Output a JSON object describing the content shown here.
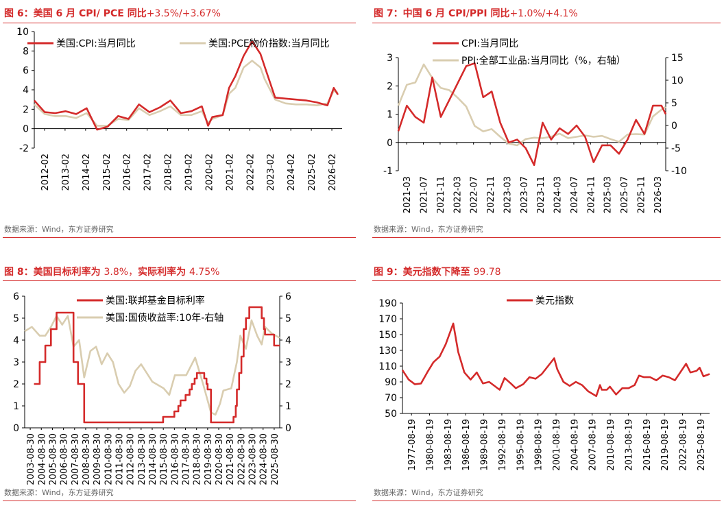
{
  "colors": {
    "red": "#d42a2a",
    "beige": "#d9cdb0",
    "axis": "#000000"
  },
  "charts": [
    {
      "title_prefix": "图 6：",
      "title_main": "美国 6 月 CPI/ PCE 同比",
      "title_suffix": "+3.5%/+3.67%",
      "source": "数据来源：Wind，东方证券研究",
      "chart_data": {
        "type": "line",
        "x_tick_labels": [
          "2012-02",
          "2013-02",
          "2014-02",
          "2015-02",
          "2016-02",
          "2017-02",
          "2018-02",
          "2019-02",
          "2020-02",
          "2021-02",
          "2022-02",
          "2023-02",
          "2024-02",
          "2025-02",
          "2026-02"
        ],
        "x_range": [
          2012.0,
          2026.7
        ],
        "ylim": [
          -2,
          10
        ],
        "yticks": [
          -2,
          0,
          2,
          4,
          6,
          8,
          10
        ],
        "legend": "top",
        "series": [
          {
            "name": "美国:CPI:当月同比",
            "color": "red",
            "x": [
              2012.0,
              2012.5,
              2013.0,
              2013.5,
              2014.0,
              2014.5,
              2015.0,
              2015.5,
              2016.0,
              2016.5,
              2017.0,
              2017.5,
              2018.0,
              2018.5,
              2019.0,
              2019.5,
              2020.0,
              2020.3,
              2020.5,
              2021.0,
              2021.3,
              2021.6,
              2022.0,
              2022.4,
              2022.8,
              2023.0,
              2023.5,
              2024.0,
              2024.5,
              2025.0,
              2025.5,
              2026.0,
              2026.3,
              2026.5
            ],
            "y": [
              2.9,
              1.7,
              1.6,
              1.8,
              1.5,
              2.1,
              -0.1,
              0.2,
              1.3,
              1.0,
              2.5,
              1.7,
              2.2,
              2.9,
              1.6,
              1.8,
              2.3,
              0.3,
              1.2,
              1.4,
              4.2,
              5.4,
              7.5,
              9.0,
              7.7,
              6.4,
              3.2,
              3.1,
              3.0,
              2.9,
              2.7,
              2.4,
              4.2,
              3.5
            ]
          },
          {
            "name": "美国:PCE物价指数:当月同比",
            "color": "beige",
            "x": [
              2012.0,
              2012.5,
              2013.0,
              2013.5,
              2014.0,
              2014.5,
              2015.0,
              2015.5,
              2016.0,
              2016.5,
              2017.0,
              2017.5,
              2018.0,
              2018.5,
              2019.0,
              2019.5,
              2020.0,
              2020.3,
              2020.5,
              2021.0,
              2021.3,
              2021.6,
              2022.0,
              2022.4,
              2022.8,
              2023.0,
              2023.5,
              2024.0,
              2024.5,
              2025.0,
              2025.5,
              2026.0,
              2026.3,
              2026.5
            ],
            "y": [
              2.5,
              1.5,
              1.3,
              1.3,
              1.1,
              1.6,
              0.3,
              0.3,
              1.0,
              0.9,
              2.1,
              1.4,
              1.8,
              2.3,
              1.4,
              1.4,
              1.8,
              0.6,
              1.0,
              1.4,
              3.6,
              4.2,
              6.3,
              7.0,
              6.3,
              5.1,
              3.0,
              2.6,
              2.5,
              2.5,
              2.4,
              2.6,
              3.9,
              3.7
            ]
          }
        ]
      }
    },
    {
      "title_prefix": "图 7：",
      "title_main": "中国 6 月 CPI/PPI 同比",
      "title_suffix": "+1.0%/+4.1%",
      "source": "数据来源：Wind，东方证券研究",
      "chart_data": {
        "type": "line",
        "x_tick_labels": [
          "2021-03",
          "2021-07",
          "2021-11",
          "2022-03",
          "2022-07",
          "2022-11",
          "2023-03",
          "2023-07",
          "2023-11",
          "2024-03",
          "2024-07",
          "2024-11",
          "2025-03",
          "2025-07",
          "2025-11",
          "2026-03"
        ],
        "x_range": [
          0,
          63
        ],
        "ylim": [
          -1,
          3
        ],
        "yticks": [
          -1,
          0,
          1,
          2,
          3
        ],
        "y2lim": [
          -10,
          15
        ],
        "y2ticks": [
          -10,
          -5,
          0,
          5,
          10,
          15
        ],
        "legend": "top",
        "series": [
          {
            "name": "CPI:当月同比",
            "color": "red",
            "axis": "left",
            "x": [
              0,
              2,
              4,
              6,
              8,
              10,
              12,
              14,
              16,
              18,
              20,
              22,
              24,
              26,
              28,
              30,
              32,
              34,
              36,
              38,
              40,
              42,
              44,
              46,
              48,
              50,
              52,
              54,
              56,
              58,
              60,
              62,
              63
            ],
            "y": [
              0.4,
              1.3,
              0.9,
              0.7,
              2.3,
              0.9,
              1.5,
              2.1,
              2.7,
              2.8,
              1.6,
              1.8,
              0.7,
              0.0,
              0.1,
              -0.2,
              -0.8,
              0.7,
              0.1,
              0.5,
              0.3,
              0.6,
              0.2,
              -0.7,
              -0.1,
              -0.1,
              -0.4,
              0.1,
              0.8,
              0.3,
              1.3,
              1.3,
              1.0
            ]
          },
          {
            "name": "PPI:全部工业品:当月同比（%，右轴）",
            "color": "beige",
            "axis": "right",
            "x": [
              0,
              2,
              4,
              6,
              8,
              10,
              12,
              14,
              16,
              18,
              20,
              22,
              24,
              26,
              28,
              30,
              32,
              34,
              36,
              38,
              40,
              42,
              44,
              46,
              48,
              50,
              52,
              54,
              56,
              58,
              60,
              62,
              63
            ],
            "y": [
              4.4,
              9.0,
              9.5,
              13.5,
              10.5,
              8.3,
              7.8,
              6.1,
              4.2,
              -0.1,
              -1.3,
              -0.8,
              -2.5,
              -4.0,
              -4.4,
              -3.0,
              -2.7,
              -2.8,
              -2.5,
              -1.8,
              -2.8,
              -2.5,
              -2.2,
              -2.5,
              -2.3,
              -3.0,
              -3.6,
              -2.0,
              -1.9,
              -2.0,
              2.0,
              3.5,
              4.1
            ]
          }
        ]
      }
    },
    {
      "title_prefix": "图 8：",
      "title_main": "美国目标利率为 ",
      "title_mid": "3.8%，",
      "title_main2": "实际利率为 ",
      "title_suffix": "4.75%",
      "source": "数据来源：Wind，东方证券研究",
      "chart_data": {
        "type": "line",
        "x_tick_labels": [
          "2003-08-30",
          "2004-08-30",
          "2005-08-30",
          "2006-08-30",
          "2007-08-30",
          "2008-08-30",
          "2009-08-30",
          "2010-08-30",
          "2011-08-30",
          "2012-08-30",
          "2013-08-30",
          "2014-08-30",
          "2015-08-30",
          "2016-08-30",
          "2017-08-30",
          "2018-08-30",
          "2019-08-30",
          "2020-08-30",
          "2021-08-30",
          "2022-08-30",
          "2023-08-30",
          "2024-08-30",
          "2025-08-30"
        ],
        "x_range": [
          2003.67,
          2026.3
        ],
        "ylim": [
          0,
          6
        ],
        "yticks": [
          0,
          1,
          2,
          3,
          4,
          5,
          6
        ],
        "y2lim": [
          0,
          6
        ],
        "y2ticks": [
          0,
          1,
          2,
          3,
          4,
          5,
          6
        ],
        "legend": "top",
        "series": [
          {
            "name": "美国:联邦基金目标利率",
            "color": "red",
            "axis": "left",
            "step": true,
            "x": [
              2004.5,
              2005.0,
              2005.5,
              2006.0,
              2006.5,
              2007.7,
              2008.0,
              2008.4,
              2008.95,
              2015.95,
              2016.95,
              2017.3,
              2017.5,
              2017.95,
              2018.3,
              2018.5,
              2018.75,
              2018.95,
              2019.6,
              2019.8,
              2019.9,
              2020.2,
              2022.2,
              2022.4,
              2022.5,
              2022.7,
              2022.9,
              2023.1,
              2023.3,
              2023.6,
              2024.7,
              2024.9,
              2025.0,
              2025.8,
              2026.3
            ],
            "y": [
              2.0,
              3.0,
              3.75,
              4.5,
              5.25,
              5.25,
              3.0,
              2.0,
              0.25,
              0.5,
              0.75,
              1.0,
              1.25,
              1.5,
              1.75,
              2.0,
              2.25,
              2.5,
              2.25,
              2.0,
              1.75,
              0.25,
              0.5,
              1.0,
              1.75,
              2.5,
              3.25,
              4.5,
              5.0,
              5.5,
              5.0,
              4.5,
              4.25,
              3.75,
              3.75
            ]
          },
          {
            "name": "美国:国债收益率:10年-右轴",
            "color": "beige",
            "axis": "right",
            "x": [
              2003.67,
              2004.3,
              2005.0,
              2005.5,
              2006.0,
              2006.5,
              2007.0,
              2007.5,
              2008.0,
              2008.5,
              2008.95,
              2009.5,
              2010.0,
              2010.5,
              2011.0,
              2011.5,
              2012.0,
              2012.5,
              2013.0,
              2013.5,
              2014.0,
              2015.0,
              2016.0,
              2016.5,
              2017.0,
              2018.0,
              2018.8,
              2019.5,
              2020.2,
              2020.6,
              2021.0,
              2021.3,
              2022.0,
              2022.5,
              2022.8,
              2023.3,
              2023.8,
              2024.3,
              2024.7,
              2025.0,
              2025.6,
              2026.3
            ],
            "y": [
              4.4,
              4.6,
              4.2,
              4.2,
              4.6,
              5.1,
              4.7,
              5.1,
              3.7,
              4.0,
              2.3,
              3.5,
              3.7,
              2.9,
              3.4,
              3.0,
              2.0,
              1.6,
              1.9,
              2.6,
              2.9,
              2.1,
              1.8,
              1.5,
              2.4,
              2.4,
              3.2,
              2.0,
              0.7,
              0.6,
              1.1,
              1.7,
              1.8,
              3.0,
              4.2,
              3.6,
              4.9,
              4.2,
              3.8,
              4.6,
              4.3,
              4.1
            ]
          }
        ]
      }
    },
    {
      "title_prefix": "图 9：",
      "title_main": "美元指数下降至 ",
      "title_suffix": "99.78",
      "source": "数据来源：Wind，东方证券研究",
      "chart_data": {
        "type": "line",
        "x_tick_labels": [
          "1977-08-19",
          "1980-08-19",
          "1983-08-19",
          "1986-08-19",
          "1989-08-19",
          "1992-08-19",
          "1995-08-19",
          "1998-08-19",
          "2001-08-19",
          "2004-08-19",
          "2007-08-19",
          "2010-08-19",
          "2013-08-19",
          "2016-08-19",
          "2019-08-19",
          "2022-08-19",
          "2025-08-19"
        ],
        "x_range": [
          1977.0,
          2026.6
        ],
        "ylim": [
          50,
          190
        ],
        "yticks": [
          50,
          70,
          90,
          110,
          130,
          150,
          170,
          190
        ],
        "legend": "top",
        "series": [
          {
            "name": "美元指数",
            "color": "red",
            "x": [
              1977.0,
              1978.0,
              1979.0,
              1980.0,
              1981.0,
              1982.0,
              1983.0,
              1984.0,
              1985.2,
              1986.0,
              1987.0,
              1988.0,
              1989.0,
              1990.0,
              1991.0,
              1992.7,
              1993.5,
              1994.5,
              1995.3,
              1996.5,
              1997.5,
              1998.5,
              1999.5,
              2000.5,
              2001.5,
              2002.0,
              2003.0,
              2004.0,
              2005.0,
              2006.0,
              2007.0,
              2008.3,
              2008.9,
              2009.2,
              2010.0,
              2010.5,
              2011.5,
              2012.5,
              2013.5,
              2014.5,
              2015.2,
              2016.0,
              2017.0,
              2018.0,
              2019.0,
              2020.0,
              2021.0,
              2022.8,
              2023.5,
              2024.5,
              2025.0,
              2025.6,
              2026.6
            ],
            "y": [
              105,
              93,
              87,
              88,
              102,
              115,
              122,
              138,
              164,
              128,
              102,
              93,
              102,
              88,
              90,
              80,
              95,
              88,
              82,
              87,
              96,
              94,
              100,
              110,
              120,
              106,
              90,
              85,
              90,
              86,
              78,
              72,
              86,
              80,
              80,
              84,
              74,
              82,
              82,
              86,
              98,
              96,
              96,
              92,
              98,
              96,
              92,
              113,
              102,
              104,
              108,
              97,
              100
            ]
          }
        ]
      }
    }
  ]
}
